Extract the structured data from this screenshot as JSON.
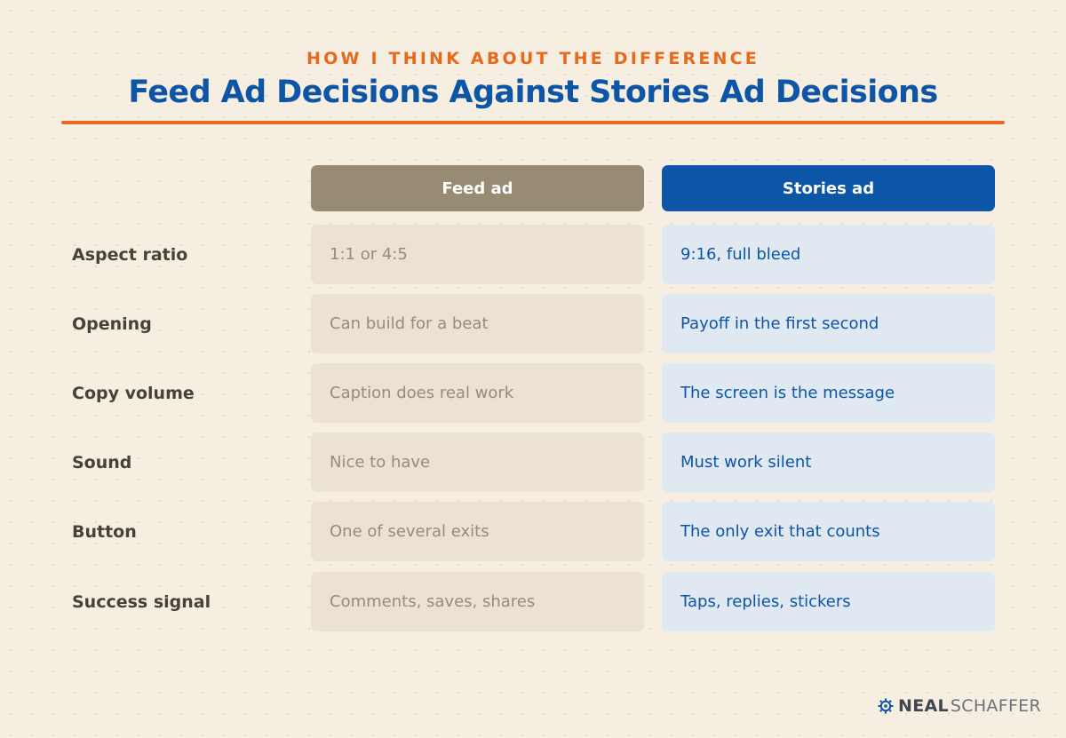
{
  "header": {
    "kicker": "HOW I THINK ABOUT THE DIFFERENCE",
    "title": "Feed Ad Decisions Against Stories Ad Decisions"
  },
  "columns": {
    "feed": "Feed ad",
    "stories": "Stories ad"
  },
  "rows": [
    {
      "label": "Aspect ratio",
      "feed": "1:1 or 4:5",
      "stories": "9:16, full bleed"
    },
    {
      "label": "Opening",
      "feed": "Can build for a beat",
      "stories": "Payoff in the first second"
    },
    {
      "label": "Copy volume",
      "feed": "Caption does real work",
      "stories": "The screen is the message"
    },
    {
      "label": "Sound",
      "feed": "Nice to have",
      "stories": "Must work silent"
    },
    {
      "label": "Button",
      "feed": "One of several exits",
      "stories": "The only exit that counts"
    },
    {
      "label": "Success signal",
      "feed": "Comments, saves, shares",
      "stories": "Taps, replies, stickers"
    }
  ],
  "brand": {
    "name_bold": "NEAL",
    "name_light": "SCHAFFER",
    "icon": "gear-logo-icon"
  },
  "colors": {
    "accent_orange": "#e8681c",
    "brand_blue": "#0d55a6",
    "feed_header": "#978b73",
    "background": "#f5eee1"
  }
}
